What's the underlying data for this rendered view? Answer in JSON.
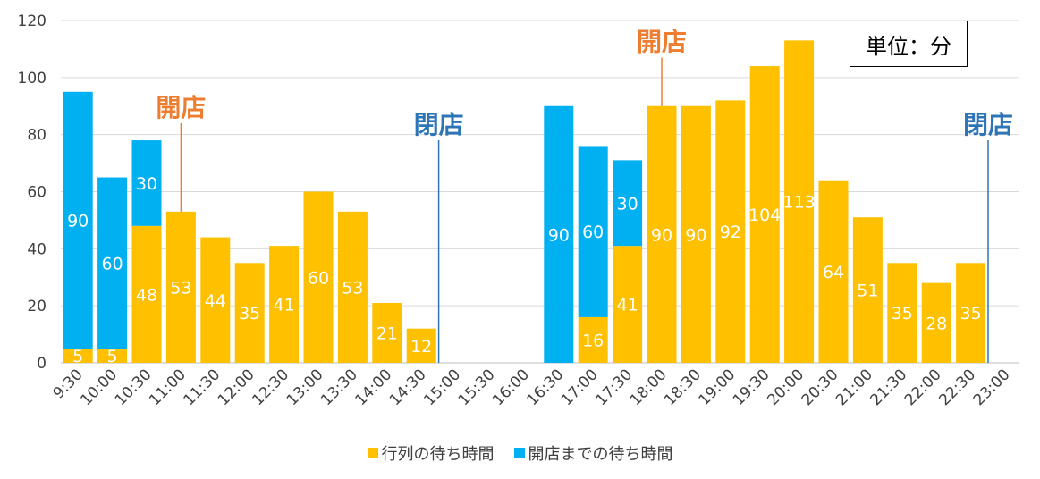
{
  "chart_data": {
    "type": "bar",
    "stacked": true,
    "categories": [
      "9:30",
      "10:00",
      "10:30",
      "11:00",
      "11:30",
      "12:00",
      "12:30",
      "13:00",
      "13:30",
      "14:00",
      "14:30",
      "15:00",
      "15:30",
      "16:00",
      "16:30",
      "17:00",
      "17:30",
      "18:00",
      "18:30",
      "19:00",
      "19:30",
      "20:00",
      "20:30",
      "21:00",
      "21:30",
      "22:00",
      "22:30",
      "23:00"
    ],
    "series": [
      {
        "name": "行列の待ち時間",
        "color": "#FFC000",
        "values": [
          5,
          5,
          48,
          53,
          44,
          35,
          41,
          60,
          53,
          21,
          12,
          null,
          null,
          null,
          null,
          16,
          41,
          90,
          90,
          92,
          104,
          113,
          64,
          51,
          35,
          28,
          35,
          null
        ]
      },
      {
        "name": "開店までの待ち時間",
        "color": "#00B0F0",
        "values": [
          90,
          60,
          30,
          null,
          null,
          null,
          null,
          null,
          null,
          null,
          null,
          null,
          null,
          null,
          90,
          60,
          30,
          null,
          null,
          null,
          null,
          null,
          null,
          null,
          null,
          null,
          null,
          null
        ]
      }
    ],
    "ylim": [
      0,
      120
    ],
    "yticks": [
      0,
      20,
      40,
      60,
      80,
      100,
      120
    ],
    "grid": true,
    "legend_position": "bottom",
    "unit_label": "単位：分",
    "annotations": [
      {
        "text": "開店",
        "category": "11:00",
        "color": "#ED7D31",
        "line_top": 84
      },
      {
        "text": "閉店",
        "category": "15:00",
        "color": "#2E75B6",
        "line_top": 78
      },
      {
        "text": "開店",
        "category": "18:00",
        "color": "#ED7D31",
        "line_top": 107
      },
      {
        "text": "閉店",
        "category": "23:00",
        "color": "#2E75B6",
        "line_top": 78
      }
    ]
  }
}
